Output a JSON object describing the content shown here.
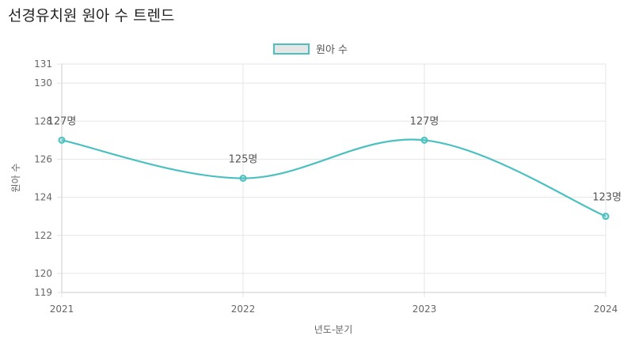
{
  "page": {
    "title": "선경유치원 원아 수 트렌드"
  },
  "colors": {
    "series_line": "#4bc0c0",
    "legend_fill": "#e6e6e6",
    "grid": "#e5e5e5",
    "axis": "#cccccc"
  },
  "chart_data": {
    "type": "line",
    "title": "선경유치원 원아 수 트렌드",
    "xlabel": "년도-분기",
    "ylabel": "원아 수",
    "categories": [
      "2021",
      "2022",
      "2023",
      "2024"
    ],
    "series": [
      {
        "name": "원아 수",
        "values": [
          127,
          125,
          127,
          123
        ],
        "data_labels": [
          "127명",
          "125명",
          "127명",
          "123명"
        ]
      }
    ],
    "ylim": [
      119,
      131
    ],
    "yticks": [
      119,
      120,
      122,
      124,
      126,
      128,
      130,
      131
    ],
    "grid": true,
    "legend_position": "top-center"
  }
}
